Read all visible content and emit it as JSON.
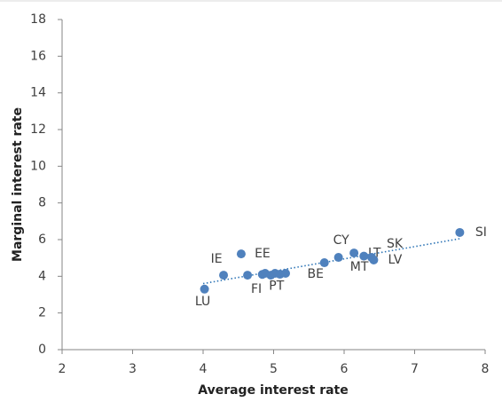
{
  "chart_data": {
    "type": "scatter",
    "xlabel": "Average interest rate",
    "ylabel": "Marginal interest rate",
    "categories": [
      "LU",
      "IE",
      "EE",
      "FI",
      "PT",
      null,
      null,
      null,
      null,
      null,
      "BE",
      "CY",
      "MT",
      "LT",
      "SK",
      "LV",
      "SI"
    ],
    "x": [
      4.02,
      4.29,
      4.54,
      4.63,
      4.84,
      4.88,
      4.96,
      5.02,
      5.09,
      5.17,
      5.72,
      5.92,
      6.14,
      6.28,
      6.39,
      6.42,
      7.64
    ],
    "y": [
      3.3,
      4.06,
      5.22,
      4.06,
      4.1,
      4.16,
      4.06,
      4.16,
      4.11,
      4.16,
      4.74,
      5.03,
      5.27,
      5.1,
      5.03,
      4.89,
      6.39
    ],
    "color": "#4f81bd",
    "trendline": {
      "x": [
        4.0,
        7.64
      ],
      "y": [
        3.6,
        6.05
      ],
      "color": "#2e75b6"
    },
    "xlim": [
      2,
      8
    ],
    "xticks": [
      2,
      3,
      4,
      5,
      6,
      7,
      8
    ],
    "ylim": [
      0,
      18
    ],
    "yticks": [
      0,
      2,
      4,
      6,
      8,
      10,
      12,
      14,
      16,
      18
    ]
  }
}
